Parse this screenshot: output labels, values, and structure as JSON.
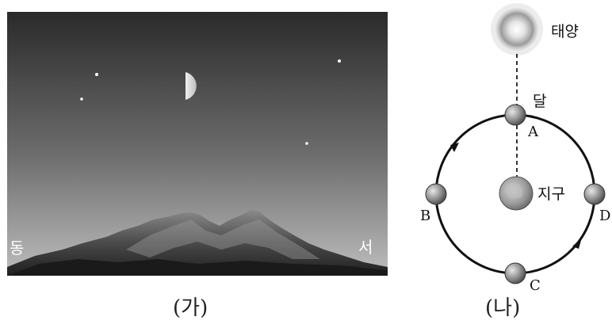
{
  "panel_a": {
    "direction_east": "동",
    "direction_west": "서",
    "caption": "(가)"
  },
  "panel_b": {
    "sun_label": "태양",
    "moon_label": "달",
    "earth_label": "지구",
    "positions": [
      "A",
      "B",
      "C",
      "D"
    ],
    "caption": "(나)"
  },
  "colors": {
    "sky_top": "#2a2a2a",
    "sky_bottom": "#b5b5b5",
    "orbit": "#111111"
  }
}
